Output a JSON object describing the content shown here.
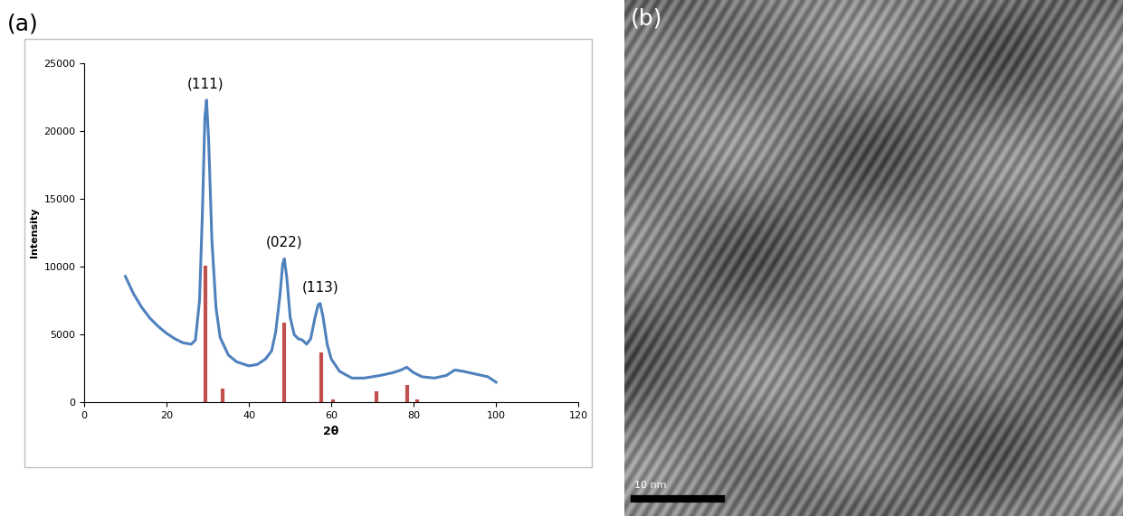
{
  "chart_data": {
    "type": "line",
    "panel_label": "(a)",
    "x_label": "2θ",
    "y_label": "Intensity",
    "xlim": [
      0,
      120
    ],
    "xticks": [
      0,
      20,
      40,
      60,
      80,
      100,
      120
    ],
    "ylim": [
      0,
      25000
    ],
    "yticks": [
      0,
      5000,
      10000,
      15000,
      20000,
      25000
    ],
    "grid": false,
    "series": [
      {
        "type": "line",
        "color": "#4f81bd",
        "x": [
          10,
          12,
          14,
          16,
          18,
          20,
          22,
          24,
          26,
          27,
          28,
          28.7,
          29.3,
          29.7,
          30.2,
          31,
          32,
          33,
          35,
          37,
          40,
          42,
          44,
          45.5,
          46.5,
          47.5,
          48.2,
          48.6,
          49.2,
          50,
          51,
          52,
          53,
          54,
          55,
          56,
          56.8,
          57.3,
          58,
          59,
          60,
          62,
          65,
          68,
          70,
          72,
          75,
          77,
          78.3,
          80,
          82,
          85,
          88,
          90,
          92,
          95,
          98,
          100
        ],
        "values": [
          9300,
          8000,
          7000,
          6200,
          5600,
          5100,
          4700,
          4400,
          4300,
          4600,
          7500,
          14000,
          21000,
          22300,
          19500,
          12000,
          7000,
          4800,
          3500,
          3000,
          2700,
          2800,
          3200,
          3800,
          5200,
          7800,
          10200,
          10600,
          9200,
          6300,
          5000,
          4700,
          4600,
          4300,
          4700,
          6200,
          7200,
          7300,
          6300,
          4300,
          3200,
          2300,
          1800,
          1800,
          1900,
          2000,
          2200,
          2400,
          2600,
          2200,
          1900,
          1800,
          2000,
          2400,
          2300,
          2100,
          1900,
          1500
        ]
      },
      {
        "type": "bar",
        "color": "#c0504d",
        "x": [
          29.5,
          33.5,
          48.5,
          57.5,
          60.5,
          71,
          78.5,
          80.8
        ],
        "values": [
          10100,
          1000,
          5900,
          3700,
          250,
          850,
          1300,
          200
        ]
      }
    ],
    "annotations": [
      {
        "text": "(111)",
        "x": 29.5,
        "y": 23000
      },
      {
        "text": "(022)",
        "x": 48.6,
        "y": 11300
      },
      {
        "text": "(113)",
        "x": 57.3,
        "y": 8000
      }
    ]
  },
  "image": {
    "panel_label": "(b)",
    "scale_bar": "10 nm"
  }
}
